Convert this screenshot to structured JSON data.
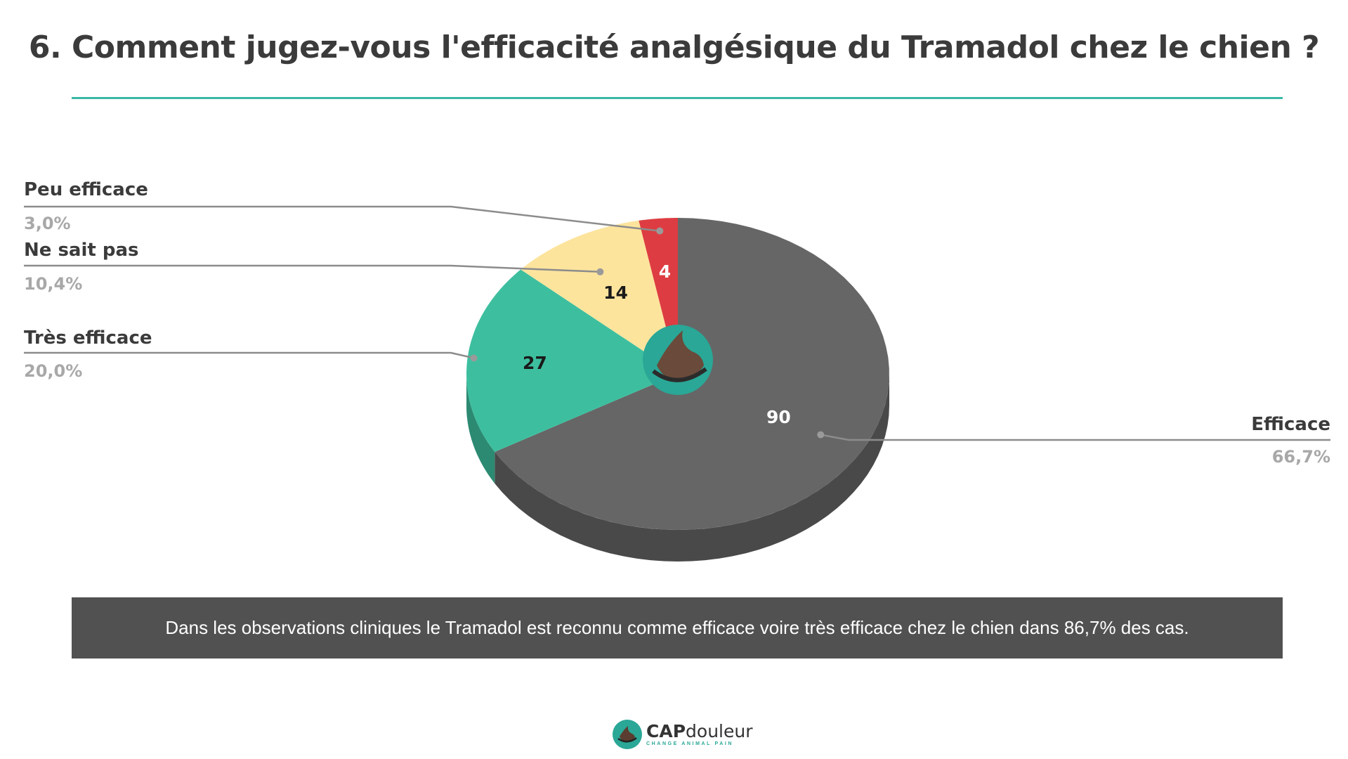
{
  "title": "6. Comment jugez-vous l'efficacité analgésique du Tramadol chez le chien ?",
  "footer_text": "Dans les observations cliniques le Tramadol est reconnu comme efficace voire très efficace chez le chien dans 86,7% des cas.",
  "brand": {
    "name_bold": "CAP",
    "name_rest": "douleur",
    "tagline": "CHANGE ANIMAL PAIN",
    "logo_icon": "dog-paw-hand-icon"
  },
  "colors": {
    "accent": "#3ab9a5",
    "efficace": "#666666",
    "tres_efficace": "#3dbf9f",
    "ne_sait_pas": "#fde49d",
    "peu_efficace": "#dd3d42",
    "footer_bg": "#515151"
  },
  "chart_data": {
    "type": "pie",
    "title": "6. Comment jugez-vous l'efficacité analgésique du Tramadol chez le chien ?",
    "slices": [
      {
        "label": "Efficace",
        "value": 90,
        "percent": "66,7%",
        "color": "#666666"
      },
      {
        "label": "Très efficace",
        "value": 27,
        "percent": "20,0%",
        "color": "#3dbf9f"
      },
      {
        "label": "Ne sait pas",
        "value": 14,
        "percent": "10,4%",
        "color": "#fde49d"
      },
      {
        "label": "Peu efficace",
        "value": 4,
        "percent": "3,0%",
        "color": "#dd3d42"
      }
    ]
  }
}
